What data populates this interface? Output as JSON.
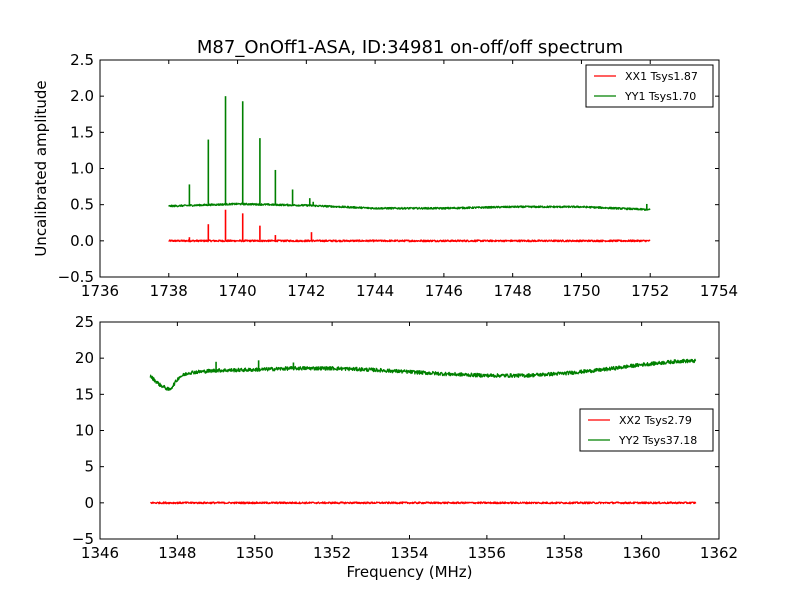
{
  "figure": {
    "title": "M87_OnOff1-ASA, ID:34981 on-off/off spectrum"
  },
  "chart_data": [
    {
      "type": "line",
      "title": "M87_OnOff1-ASA, ID:34981 on-off/off spectrum",
      "xlabel": "",
      "ylabel": "Uncalibrated amplitude",
      "xlim": [
        1736,
        1754
      ],
      "ylim": [
        -0.5,
        2.5
      ],
      "xticks": [
        1736,
        1738,
        1740,
        1742,
        1744,
        1746,
        1748,
        1750,
        1752,
        1754
      ],
      "yticks": [
        -0.5,
        0.0,
        0.5,
        1.0,
        1.5,
        2.0,
        2.5
      ],
      "xtick_labels": [
        "1736",
        "1738",
        "1740",
        "1742",
        "1744",
        "1746",
        "1748",
        "1750",
        "1752",
        "1754"
      ],
      "ytick_labels": [
        "−0.5",
        "0.0",
        "0.5",
        "1.0",
        "1.5",
        "2.0",
        "2.5"
      ],
      "grid": false,
      "legend_position": "top-right",
      "series": [
        {
          "name": "XX1 Tsys1.87",
          "color": "#ff0000",
          "x_range": [
            1738.0,
            1752.0
          ],
          "baseline": [
            [
              1738.0,
              0.0
            ],
            [
              1752.0,
              0.0
            ]
          ],
          "noise": 0.012,
          "spikes": [
            [
              1738.6,
              0.05
            ],
            [
              1739.15,
              0.23
            ],
            [
              1739.65,
              0.43
            ],
            [
              1740.15,
              0.38
            ],
            [
              1740.65,
              0.21
            ],
            [
              1741.1,
              0.08
            ],
            [
              1742.15,
              0.12
            ]
          ]
        },
        {
          "name": "YY1 Tsys1.70",
          "color": "#008000",
          "x_range": [
            1738.0,
            1752.0
          ],
          "baseline": [
            [
              1738.0,
              0.48
            ],
            [
              1740.0,
              0.51
            ],
            [
              1742.0,
              0.49
            ],
            [
              1744.0,
              0.45
            ],
            [
              1746.0,
              0.45
            ],
            [
              1748.0,
              0.47
            ],
            [
              1750.0,
              0.47
            ],
            [
              1752.0,
              0.43
            ]
          ],
          "noise": 0.012,
          "spikes": [
            [
              1738.6,
              0.78
            ],
            [
              1739.15,
              1.4
            ],
            [
              1739.65,
              2.0
            ],
            [
              1740.15,
              1.93
            ],
            [
              1740.65,
              1.42
            ],
            [
              1741.1,
              0.98
            ],
            [
              1741.6,
              0.71
            ],
            [
              1742.1,
              0.59
            ],
            [
              1742.2,
              0.54
            ],
            [
              1751.9,
              0.51
            ]
          ]
        }
      ]
    },
    {
      "type": "line",
      "title": "",
      "xlabel": "Frequency (MHz)",
      "ylabel": "",
      "xlim": [
        1346,
        1362
      ],
      "ylim": [
        -5,
        25
      ],
      "xticks": [
        1346,
        1348,
        1350,
        1352,
        1354,
        1356,
        1358,
        1360,
        1362
      ],
      "yticks": [
        -5,
        0,
        5,
        10,
        15,
        20,
        25
      ],
      "xtick_labels": [
        "1346",
        "1348",
        "1350",
        "1352",
        "1354",
        "1356",
        "1358",
        "1360",
        "1362"
      ],
      "ytick_labels": [
        "−5",
        "0",
        "5",
        "10",
        "15",
        "20",
        "25"
      ],
      "grid": false,
      "legend_position": "center-right",
      "series": [
        {
          "name": "XX2 Tsys2.79",
          "color": "#ff0000",
          "x_range": [
            1347.3,
            1361.4
          ],
          "baseline": [
            [
              1347.3,
              0.0
            ],
            [
              1361.4,
              0.0
            ]
          ],
          "noise": 0.12,
          "spikes": []
        },
        {
          "name": "YY2 Tsys37.18",
          "color": "#008000",
          "x_range": [
            1347.3,
            1361.4
          ],
          "baseline": [
            [
              1347.3,
              17.5
            ],
            [
              1347.55,
              16.3
            ],
            [
              1347.8,
              15.6
            ],
            [
              1348.05,
              17.4
            ],
            [
              1348.3,
              18.0
            ],
            [
              1349.0,
              18.3
            ],
            [
              1350.0,
              18.4
            ],
            [
              1351.0,
              18.6
            ],
            [
              1352.0,
              18.6
            ],
            [
              1353.0,
              18.4
            ],
            [
              1354.0,
              18.1
            ],
            [
              1355.0,
              17.8
            ],
            [
              1356.0,
              17.6
            ],
            [
              1357.0,
              17.6
            ],
            [
              1358.0,
              17.9
            ],
            [
              1359.0,
              18.4
            ],
            [
              1360.0,
              19.1
            ],
            [
              1361.0,
              19.6
            ],
            [
              1361.4,
              19.6
            ]
          ],
          "noise": 0.25,
          "spikes": [
            [
              1349.0,
              19.5
            ],
            [
              1350.1,
              19.7
            ],
            [
              1351.0,
              19.4
            ]
          ]
        }
      ]
    }
  ]
}
